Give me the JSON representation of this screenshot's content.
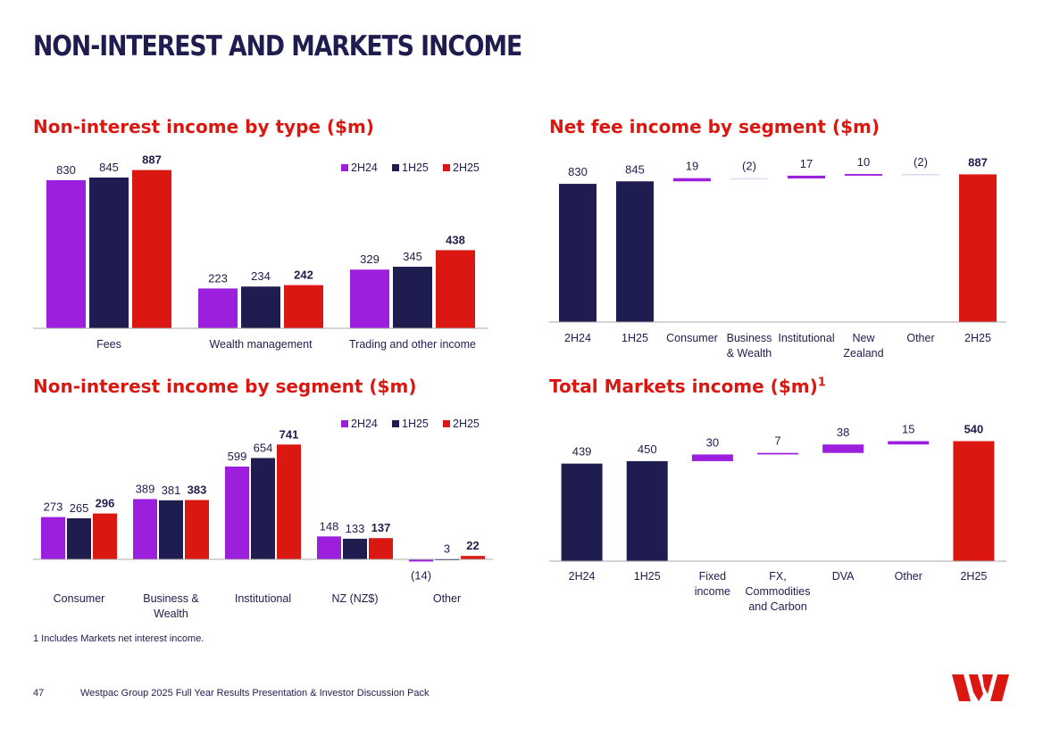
{
  "page": {
    "title": "NON-INTEREST AND MARKETS INCOME",
    "footnote": "1 Includes Markets net interest income.",
    "page_number": "47",
    "footer": "Westpac Group 2025 Full Year Results Presentation & Investor Discussion Pack",
    "logo_text": "W",
    "colors": {
      "navy": "#1f1c4f",
      "purple": "#9b1fdc",
      "red": "#da1710",
      "axis": "#999999"
    }
  },
  "chart_data": [
    {
      "id": "by_type",
      "type": "bar",
      "title": "Non-interest income by type ($m)",
      "categories": [
        "Fees",
        "Wealth management",
        "Trading and other income"
      ],
      "series": [
        {
          "name": "2H24",
          "color": "#9b1fdc",
          "values": [
            830,
            223,
            329
          ]
        },
        {
          "name": "1H25",
          "color": "#1f1c4f",
          "values": [
            845,
            234,
            345
          ]
        },
        {
          "name": "2H25",
          "color": "#da1710",
          "values": [
            887,
            242,
            438
          ]
        }
      ],
      "ylim": [
        0,
        900
      ],
      "legend": "top-right"
    },
    {
      "id": "fee_waterfall",
      "type": "waterfall",
      "title": "Net fee income by segment ($m)",
      "steps": [
        {
          "label": "2H24",
          "value": 830,
          "display": "830",
          "kind": "total",
          "color": "#1f1c4f"
        },
        {
          "label": "1H25",
          "value": 845,
          "display": "845",
          "kind": "total",
          "color": "#1f1c4f"
        },
        {
          "label": "Consumer",
          "value": 19,
          "display": "19",
          "kind": "delta",
          "color": "#9b1fdc"
        },
        {
          "label": "Business & Wealth",
          "value": -2,
          "display": "(2)",
          "kind": "delta",
          "color": "#9b1fdc"
        },
        {
          "label": "Institutional",
          "value": 17,
          "display": "17",
          "kind": "delta",
          "color": "#9b1fdc"
        },
        {
          "label": "New Zealand",
          "value": 10,
          "display": "10",
          "kind": "delta",
          "color": "#9b1fdc"
        },
        {
          "label": "Other",
          "value": -2,
          "display": "(2)",
          "kind": "delta",
          "color": "#9b1fdc"
        },
        {
          "label": "2H25",
          "value": 887,
          "display": "887",
          "kind": "total",
          "color": "#da1710"
        }
      ],
      "ylim": [
        0,
        900
      ]
    },
    {
      "id": "by_segment",
      "type": "bar",
      "title": "Non-interest income by segment ($m)",
      "categories": [
        "Consumer",
        "Business & Wealth",
        "Institutional",
        "NZ (NZ$)",
        "Other"
      ],
      "series": [
        {
          "name": "2H24",
          "color": "#9b1fdc",
          "values": [
            273,
            389,
            599,
            148,
            -14
          ]
        },
        {
          "name": "1H25",
          "color": "#1f1c4f",
          "values": [
            265,
            381,
            654,
            133,
            3
          ]
        },
        {
          "name": "2H25",
          "color": "#da1710",
          "values": [
            296,
            383,
            741,
            137,
            22
          ]
        }
      ],
      "value_labels": [
        [
          "273",
          "389",
          "599",
          "148",
          "(14)"
        ],
        [
          "265",
          "381",
          "654",
          "133",
          "3"
        ],
        [
          "296",
          "383",
          "741",
          "137",
          "22"
        ]
      ],
      "ylim": [
        -20,
        760
      ],
      "legend": "top-right"
    },
    {
      "id": "markets_waterfall",
      "type": "waterfall",
      "title": "Total Markets income ($m)",
      "title_superscript": "1",
      "steps": [
        {
          "label": "2H24",
          "value": 439,
          "display": "439",
          "kind": "total",
          "color": "#1f1c4f"
        },
        {
          "label": "1H25",
          "value": 450,
          "display": "450",
          "kind": "total",
          "color": "#1f1c4f"
        },
        {
          "label": "Fixed income",
          "value": 30,
          "display": "30",
          "kind": "delta",
          "color": "#9b1fdc"
        },
        {
          "label": "FX, Commodities and Carbon",
          "value": 7,
          "display": "7",
          "kind": "delta",
          "color": "#9b1fdc"
        },
        {
          "label": "DVA",
          "value": 38,
          "display": "38",
          "kind": "delta",
          "color": "#9b1fdc"
        },
        {
          "label": "Other",
          "value": 15,
          "display": "15",
          "kind": "delta",
          "color": "#9b1fdc"
        },
        {
          "label": "2H25",
          "value": 540,
          "display": "540",
          "kind": "total",
          "color": "#da1710"
        }
      ],
      "ylim": [
        0,
        550
      ]
    }
  ]
}
